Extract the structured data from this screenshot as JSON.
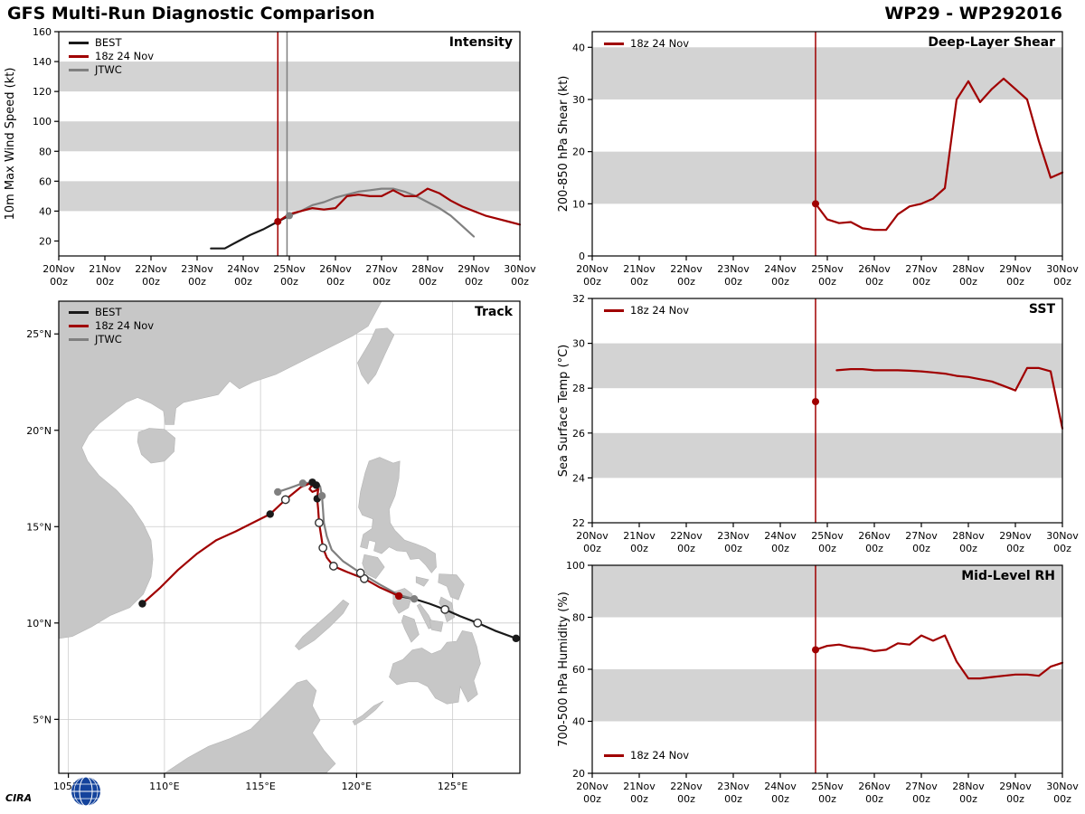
{
  "header": {
    "title": "GFS Multi-Run Diagnostic Comparison",
    "storm_id": "WP29 - WP292016"
  },
  "logo": {
    "text": "CIRA"
  },
  "colors": {
    "model": "#a00000",
    "best": "#1a1a1a",
    "jtwc": "#808080",
    "band": "#d3d3d3",
    "land": "#c7c7c7",
    "grid": "#cccccc",
    "axis": "#000000",
    "logo": "#2a62c5"
  },
  "time_axis": {
    "min": 20,
    "max": 30,
    "ticks": [
      {
        "v": 20,
        "day": "20Nov",
        "hour": "00z"
      },
      {
        "v": 21,
        "day": "21Nov",
        "hour": "00z"
      },
      {
        "v": 22,
        "day": "22Nov",
        "hour": "00z"
      },
      {
        "v": 23,
        "day": "23Nov",
        "hour": "00z"
      },
      {
        "v": 24,
        "day": "24Nov",
        "hour": "00z"
      },
      {
        "v": 25,
        "day": "25Nov",
        "hour": "00z"
      },
      {
        "v": 26,
        "day": "26Nov",
        "hour": "00z"
      },
      {
        "v": 27,
        "day": "27Nov",
        "hour": "00z"
      },
      {
        "v": 28,
        "day": "28Nov",
        "hour": "00z"
      },
      {
        "v": 29,
        "day": "29Nov",
        "hour": "00z"
      },
      {
        "v": 30,
        "day": "30Nov",
        "hour": "00z"
      }
    ]
  },
  "chart_data": [
    {
      "id": "intensity",
      "type": "line",
      "panel_label": "Intensity",
      "ylabel": "10m Max Wind Speed (kt)",
      "ylim": [
        10,
        160
      ],
      "yticks": [
        20,
        40,
        60,
        80,
        100,
        120,
        140,
        160
      ],
      "bands": [
        [
          40,
          60
        ],
        [
          80,
          100
        ],
        [
          120,
          140
        ]
      ],
      "legend": [
        {
          "label": "BEST",
          "color_key": "best"
        },
        {
          "label": "18z 24 Nov",
          "color_key": "model"
        },
        {
          "label": "JTWC",
          "color_key": "jtwc"
        }
      ],
      "vlines": [
        {
          "x": 24.75,
          "color_key": "model"
        },
        {
          "x": 24.95,
          "color_key": "jtwc"
        }
      ],
      "series": [
        {
          "name": "BEST",
          "color_key": "best",
          "x": [
            23.3,
            23.6,
            23.9,
            24.15,
            24.45,
            24.75,
            25.0
          ],
          "y": [
            15,
            15,
            20,
            24,
            28,
            33,
            37
          ]
        },
        {
          "name": "JTWC",
          "color_key": "jtwc",
          "x": [
            25.0,
            25.25,
            25.5,
            25.75,
            26.0,
            26.25,
            26.5,
            26.75,
            27.0,
            27.25,
            27.5,
            27.75,
            28.0,
            28.25,
            28.5,
            28.75,
            29.0
          ],
          "y": [
            37,
            40,
            44,
            46,
            49,
            51,
            53,
            54,
            55,
            55,
            53,
            50,
            46,
            42,
            37,
            30,
            23
          ]
        },
        {
          "name": "18z 24 Nov",
          "color_key": "model",
          "x": [
            24.75,
            25.0,
            25.25,
            25.5,
            25.75,
            26.0,
            26.25,
            26.5,
            26.75,
            27.0,
            27.25,
            27.5,
            27.75,
            28.0,
            28.25,
            28.5,
            28.75,
            29.0,
            29.25,
            29.5,
            29.75,
            30.0
          ],
          "y": [
            33,
            38,
            40,
            42,
            41,
            42,
            50,
            51,
            50,
            50,
            54,
            50,
            50,
            55,
            52,
            47,
            43,
            40,
            37,
            35,
            33,
            31
          ]
        }
      ],
      "dots": [
        {
          "x": 24.75,
          "y": 33,
          "color_key": "model"
        },
        {
          "x": 25.0,
          "y": 37,
          "color_key": "jtwc"
        }
      ]
    },
    {
      "id": "shear",
      "type": "line",
      "panel_label": "Deep-Layer Shear",
      "ylabel": "200-850 hPa Shear (kt)",
      "ylim": [
        0,
        43
      ],
      "yticks": [
        0,
        10,
        20,
        30,
        40
      ],
      "bands": [
        [
          10,
          20
        ],
        [
          30,
          40
        ]
      ],
      "legend": [
        {
          "label": "18z 24 Nov",
          "color_key": "model"
        }
      ],
      "vlines": [
        {
          "x": 24.75,
          "color_key": "model"
        }
      ],
      "series": [
        {
          "name": "18z 24 Nov",
          "color_key": "model",
          "x": [
            24.75,
            25.0,
            25.25,
            25.5,
            25.75,
            26.0,
            26.25,
            26.5,
            26.75,
            27.0,
            27.25,
            27.5,
            27.75,
            28.0,
            28.25,
            28.5,
            28.75,
            29.0,
            29.25,
            29.5,
            29.75,
            30.0
          ],
          "y": [
            10,
            7,
            6.3,
            6.5,
            5.3,
            5,
            5,
            8,
            9.5,
            10,
            11,
            13,
            30,
            33.5,
            29.5,
            32,
            34,
            32,
            30,
            22,
            15,
            16
          ]
        }
      ],
      "dots": [
        {
          "x": 24.75,
          "y": 10,
          "color_key": "model"
        }
      ]
    },
    {
      "id": "sst",
      "type": "line",
      "panel_label": "SST",
      "ylabel": "Sea Surface Temp (°C)",
      "ylim": [
        22,
        32
      ],
      "yticks": [
        22,
        24,
        26,
        28,
        30,
        32
      ],
      "bands": [
        [
          24,
          26
        ],
        [
          28,
          30
        ]
      ],
      "legend": [
        {
          "label": "18z 24 Nov",
          "color_key": "model"
        }
      ],
      "vlines": [
        {
          "x": 24.75,
          "color_key": "model"
        }
      ],
      "series": [
        {
          "name": "18z 24 Nov",
          "color_key": "model",
          "x": [
            25.2,
            25.5,
            25.75,
            26.0,
            26.25,
            26.5,
            26.75,
            27.0,
            27.25,
            27.5,
            27.75,
            28.0,
            28.25,
            28.5,
            28.75,
            29.0,
            29.25,
            29.5,
            29.75,
            30.0
          ],
          "y": [
            28.8,
            28.85,
            28.85,
            28.8,
            28.8,
            28.8,
            28.78,
            28.75,
            28.7,
            28.65,
            28.55,
            28.5,
            28.4,
            28.3,
            28.1,
            27.9,
            28.9,
            28.9,
            28.75,
            26.2
          ]
        }
      ],
      "dots": [
        {
          "x": 24.75,
          "y": 27.4,
          "color_key": "model"
        }
      ]
    },
    {
      "id": "rh",
      "type": "line",
      "panel_label": "Mid-Level RH",
      "ylabel": "700-500 hPa Humidity (%)",
      "ylim": [
        20,
        100
      ],
      "yticks": [
        20,
        40,
        60,
        80,
        100
      ],
      "bands": [
        [
          40,
          60
        ],
        [
          80,
          100
        ]
      ],
      "legend": [
        {
          "label": "18z 24 Nov",
          "color_key": "model"
        }
      ],
      "vlines": [
        {
          "x": 24.75,
          "color_key": "model"
        }
      ],
      "series": [
        {
          "name": "18z 24 Nov",
          "color_key": "model",
          "x": [
            24.75,
            25.0,
            25.25,
            25.5,
            25.75,
            26.0,
            26.25,
            26.5,
            26.75,
            27.0,
            27.25,
            27.5,
            27.75,
            28.0,
            28.25,
            28.5,
            28.75,
            29.0,
            29.25,
            29.5,
            29.75,
            30.0
          ],
          "y": [
            67.5,
            69,
            69.5,
            68.5,
            68,
            67,
            67.5,
            70,
            69.5,
            73,
            71,
            73,
            63,
            56.5,
            56.5,
            57,
            57.5,
            58,
            58,
            57.5,
            61,
            62.5
          ]
        }
      ],
      "dots": [
        {
          "x": 24.75,
          "y": 67.5,
          "color_key": "model"
        }
      ]
    },
    {
      "id": "track",
      "type": "track",
      "panel_label": "Track",
      "xlim": [
        104.5,
        128.5
      ],
      "ylim": [
        2.2,
        26.7
      ],
      "lon_ticks": [
        {
          "v": 105,
          "label": "105°E"
        },
        {
          "v": 110,
          "label": "110°E"
        },
        {
          "v": 115,
          "label": "115°E"
        },
        {
          "v": 120,
          "label": "120°E"
        },
        {
          "v": 125,
          "label": "125°E"
        }
      ],
      "lat_ticks": [
        {
          "v": 5,
          "label": "5°N"
        },
        {
          "v": 10,
          "label": "10°N"
        },
        {
          "v": 15,
          "label": "15°N"
        },
        {
          "v": 20,
          "label": "20°N"
        },
        {
          "v": 25,
          "label": "25°N"
        }
      ],
      "legend": [
        {
          "label": "BEST",
          "color_key": "best"
        },
        {
          "label": "18z 24 Nov",
          "color_key": "model"
        },
        {
          "label": "JTWC",
          "color_key": "jtwc"
        }
      ],
      "series": [
        {
          "name": "BEST",
          "color_key": "best",
          "points": [
            [
              128.3,
              9.2
            ],
            [
              127.2,
              9.6
            ],
            [
              126.3,
              10.0
            ],
            [
              125.4,
              10.35
            ],
            [
              124.6,
              10.7
            ],
            [
              123.8,
              11.0
            ],
            [
              123.0,
              11.25
            ],
            [
              122.2,
              11.4
            ]
          ]
        },
        {
          "name": "JTWC",
          "color_key": "jtwc",
          "points": [
            [
              123.0,
              11.25
            ],
            [
              122.2,
              11.45
            ],
            [
              121.2,
              12.0
            ],
            [
              120.2,
              12.6
            ],
            [
              119.3,
              13.2
            ],
            [
              118.7,
              13.8
            ],
            [
              118.45,
              14.5
            ],
            [
              118.3,
              15.2
            ],
            [
              118.25,
              15.9
            ],
            [
              118.2,
              16.6
            ],
            [
              118.1,
              17.1
            ],
            [
              117.8,
              17.3
            ],
            [
              117.2,
              17.25
            ],
            [
              116.5,
              17.0
            ],
            [
              115.9,
              16.8
            ]
          ]
        },
        {
          "name": "18z 24 Nov",
          "color_key": "model",
          "points": [
            [
              122.2,
              11.4
            ],
            [
              121.2,
              11.85
            ],
            [
              120.4,
              12.3
            ],
            [
              119.5,
              12.65
            ],
            [
              118.8,
              12.95
            ],
            [
              118.45,
              13.4
            ],
            [
              118.25,
              13.9
            ],
            [
              118.15,
              14.55
            ],
            [
              118.05,
              15.2
            ],
            [
              118.0,
              15.9
            ],
            [
              117.95,
              16.45
            ],
            [
              118.0,
              16.95
            ],
            [
              117.9,
              17.15
            ],
            [
              117.65,
              17.1
            ],
            [
              117.55,
              16.95
            ],
            [
              117.7,
              16.8
            ],
            [
              117.95,
              16.9
            ],
            [
              118.0,
              17.1
            ],
            [
              117.7,
              17.3
            ],
            [
              117.1,
              17.05
            ],
            [
              116.3,
              16.4
            ],
            [
              115.5,
              15.65
            ],
            [
              114.6,
              15.2
            ],
            [
              113.7,
              14.75
            ],
            [
              112.7,
              14.3
            ],
            [
              111.7,
              13.6
            ],
            [
              110.7,
              12.75
            ],
            [
              109.8,
              11.85
            ],
            [
              108.85,
              11.0
            ]
          ]
        }
      ],
      "markers": [
        {
          "x": 128.3,
          "y": 9.2,
          "style": "filled",
          "color_key": "best"
        },
        {
          "x": 126.3,
          "y": 10.0,
          "style": "open",
          "color_key": "best"
        },
        {
          "x": 124.6,
          "y": 10.7,
          "style": "open",
          "color_key": "best"
        },
        {
          "x": 123.0,
          "y": 11.25,
          "style": "filled",
          "color_key": "jtwc"
        },
        {
          "x": 122.2,
          "y": 11.4,
          "style": "filled",
          "color_key": "model"
        },
        {
          "x": 120.4,
          "y": 12.3,
          "style": "open",
          "color_key": "model"
        },
        {
          "x": 118.8,
          "y": 12.95,
          "style": "open",
          "color_key": "model"
        },
        {
          "x": 118.25,
          "y": 13.9,
          "style": "open",
          "color_key": "model"
        },
        {
          "x": 118.05,
          "y": 15.2,
          "style": "open",
          "color_key": "model"
        },
        {
          "x": 117.95,
          "y": 16.45,
          "style": "filled",
          "color_key": "best"
        },
        {
          "x": 117.9,
          "y": 17.15,
          "style": "filled",
          "color_key": "best"
        },
        {
          "x": 117.7,
          "y": 17.3,
          "style": "filled",
          "color_key": "best"
        },
        {
          "x": 116.3,
          "y": 16.4,
          "style": "open",
          "color_key": "model"
        },
        {
          "x": 115.5,
          "y": 15.65,
          "style": "filled",
          "color_key": "best"
        },
        {
          "x": 108.85,
          "y": 11.0,
          "style": "filled",
          "color_key": "best"
        },
        {
          "x": 120.2,
          "y": 12.6,
          "style": "open",
          "color_key": "jtwc"
        },
        {
          "x": 118.2,
          "y": 16.6,
          "style": "filled",
          "color_key": "jtwc"
        },
        {
          "x": 117.2,
          "y": 17.25,
          "style": "filled",
          "color_key": "jtwc"
        },
        {
          "x": 115.9,
          "y": 16.8,
          "style": "filled",
          "color_key": "jtwc"
        }
      ]
    }
  ]
}
